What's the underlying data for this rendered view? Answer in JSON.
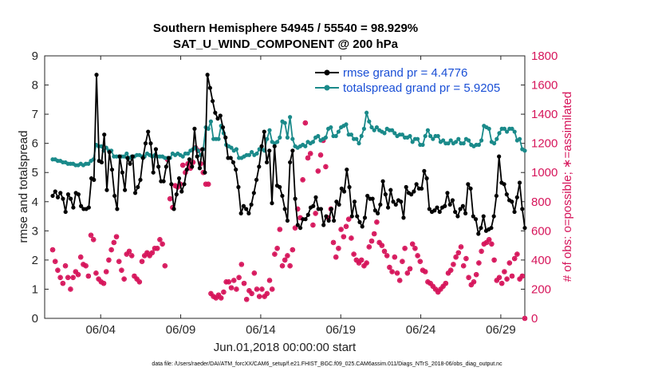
{
  "chart_data": {
    "type": "line",
    "title": "Southern Hemisphere 54945 / 55540 = 98.929%",
    "subtitle": "SAT_U_WIND_COMPONENT @ 200 hPa",
    "xlabel": "Jun.01,2018 00:00:00 start",
    "ylabel_left": "rmse and totalspread",
    "ylabel_right": "# of obs: o=possible; ∗=assimilated",
    "ylim_left": [
      0,
      9
    ],
    "ylim_right": [
      0,
      1800
    ],
    "yticks_left": [
      "0",
      "1",
      "2",
      "3",
      "4",
      "5",
      "6",
      "7",
      "8",
      "9"
    ],
    "yticks_right": [
      "0",
      "200",
      "400",
      "600",
      "800",
      "1000",
      "1200",
      "1400",
      "1600",
      "1800"
    ],
    "xlim_days": [
      0.5,
      30.5
    ],
    "xticks": [
      {
        "day": 4,
        "label": "06/04"
      },
      {
        "day": 9,
        "label": "06/09"
      },
      {
        "day": 14,
        "label": "06/14"
      },
      {
        "day": 19,
        "label": "06/19"
      },
      {
        "day": 24,
        "label": "06/24"
      },
      {
        "day": 29,
        "label": "06/29"
      }
    ],
    "legend_position": "top-right",
    "colors": {
      "rmse": "#000000",
      "spread": "#1a8a8a",
      "obs": "#d6145a",
      "legend_text": "#1a4fd6",
      "right_axis": "#d6145a"
    },
    "series": [
      {
        "name": "rmse grand pr = 4.4776",
        "axis": "left",
        "color": "#000000",
        "values": [
          4.2,
          4.35,
          4.15,
          4.3,
          4.1,
          3.65,
          4.25,
          4.1,
          3.8,
          4.3,
          4.25,
          3.85,
          3.75,
          3.75,
          3.8,
          4.8,
          4.75,
          8.35,
          5.4,
          5.35,
          6.3,
          4.4,
          5.7,
          5.1,
          4.2,
          3.75,
          5.55,
          5.0,
          4.4,
          5.5,
          5.3,
          5.55,
          4.3,
          4.5,
          4.75,
          5.5,
          6.0,
          6.4,
          6.0,
          5.0,
          5.8,
          5.2,
          4.7,
          4.7,
          5.2,
          5.5,
          4.6,
          3.75,
          4.25,
          4.8,
          4.35,
          4.6,
          5.1,
          5.45,
          5.2,
          6.5,
          5.55,
          5.15,
          5.8,
          5.0,
          8.35,
          7.9,
          7.45,
          7.05,
          6.85,
          6.95,
          6.55,
          6.2,
          5.5,
          5.5,
          5.35,
          5.1,
          4.5,
          3.6,
          3.85,
          3.75,
          3.6,
          3.9,
          4.3,
          4.75,
          5.2,
          5.9,
          6.4,
          5.35,
          5.75,
          3.95,
          5.9,
          4.55,
          4.5,
          4.2,
          3.75,
          3.35,
          5.35,
          5.75,
          4.1,
          3.2,
          3.1,
          3.4,
          3.4,
          3.55,
          3.8,
          3.85,
          4.15,
          3.75,
          3.75,
          3.2,
          3.5,
          3.35,
          3.75,
          3.35,
          4.0,
          3.9,
          4.45,
          4.35,
          5.1,
          4.5,
          3.5,
          4.0,
          3.5,
          3.3,
          3.15,
          3.45,
          4.2,
          4.1,
          4.1,
          3.7,
          3.6,
          3.9,
          4.7,
          4.25,
          3.8,
          4.4,
          4.0,
          3.9,
          4.05,
          4.0,
          3.45,
          4.5,
          4.3,
          4.25,
          4.35,
          4.6,
          4.45,
          4.45,
          5.05,
          4.8,
          3.75,
          3.65,
          3.7,
          3.8,
          3.65,
          3.8,
          3.85,
          4.3,
          3.9,
          4.05,
          3.65,
          3.5,
          3.75,
          3.85,
          3.6,
          4.6,
          4.45,
          3.5,
          3.4,
          2.9,
          3.1,
          3.5,
          3.0,
          3.05,
          3.1,
          3.5,
          4.2,
          5.55,
          4.65,
          4.6,
          4.25,
          4.05,
          4.0,
          3.65,
          4.15,
          4.65,
          3.75,
          3.1
        ]
      },
      {
        "name": "totalspread grand pr = 5.9205",
        "axis": "left",
        "color": "#1a8a8a",
        "values": [
          5.45,
          5.45,
          5.4,
          5.4,
          5.35,
          5.35,
          5.3,
          5.3,
          5.3,
          5.25,
          5.25,
          5.3,
          5.25,
          5.3,
          5.3,
          5.4,
          5.45,
          5.95,
          5.9,
          5.9,
          5.75,
          5.85,
          5.75,
          5.75,
          5.55,
          5.55,
          5.55,
          5.55,
          5.55,
          5.65,
          5.5,
          5.55,
          5.55,
          5.6,
          5.6,
          5.55,
          5.55,
          5.65,
          5.6,
          5.55,
          5.6,
          5.55,
          5.55,
          5.55,
          5.5,
          5.5,
          5.5,
          5.65,
          5.6,
          5.65,
          5.6,
          5.55,
          5.65,
          5.65,
          5.75,
          5.8,
          5.85,
          5.75,
          5.6,
          5.8,
          6.55,
          6.5,
          6.75,
          6.15,
          6.15,
          6.15,
          6.6,
          6.35,
          5.95,
          5.9,
          5.85,
          5.75,
          5.8,
          5.5,
          5.5,
          5.55,
          5.6,
          5.6,
          5.7,
          5.6,
          5.65,
          5.8,
          5.8,
          5.75,
          6.15,
          6.45,
          6.05,
          6.0,
          6.05,
          6.2,
          6.75,
          6.7,
          6.2,
          6.9,
          6.15,
          5.9,
          5.85,
          5.9,
          5.95,
          5.9,
          6.05,
          6.0,
          6.05,
          6.2,
          6.25,
          6.1,
          6.15,
          6.2,
          6.5,
          6.55,
          6.25,
          6.25,
          6.4,
          6.55,
          6.6,
          6.65,
          6.3,
          6.3,
          6.15,
          6.15,
          6.0,
          6.25,
          6.5,
          7.05,
          6.75,
          6.55,
          6.45,
          6.55,
          6.45,
          6.4,
          6.35,
          6.5,
          6.45,
          6.45,
          6.35,
          6.25,
          6.3,
          6.3,
          6.2,
          6.2,
          6.25,
          6.05,
          6.15,
          6.15,
          5.95,
          5.95,
          6.25,
          6.45,
          6.25,
          6.15,
          6.25,
          6.25,
          6.05,
          6.1,
          6.0,
          6.0,
          6.1,
          6.0,
          6.05,
          6.15,
          6.0,
          6.0,
          6.15,
          6.1,
          5.95,
          5.9,
          5.95,
          5.95,
          6.1,
          6.6,
          6.55,
          6.5,
          6.05,
          6.0,
          6.15,
          6.35,
          6.5,
          6.5,
          6.4,
          6.5,
          6.5,
          6.4,
          6.1,
          6.15,
          5.8,
          5.75
        ]
      },
      {
        "name": "obs possible (o)",
        "axis": "right",
        "color": "#d6145a",
        "values": [
          470,
          390,
          330,
          280,
          240,
          360,
          280,
          200,
          280,
          320,
          300,
          420,
          370,
          360,
          290,
          570,
          540,
          310,
          270,
          250,
          240,
          320,
          400,
          470,
          520,
          560,
          390,
          330,
          270,
          440,
          460,
          430,
          290,
          270,
          250,
          390,
          430,
          450,
          430,
          450,
          480,
          480,
          540,
          510,
          360,
          1090,
          820,
          760,
          910,
          900,
          920,
          1050,
          1000,
          1060,
          1030,
          1070,
          1170,
          1150,
          1060,
          1000,
          920,
          920,
          170,
          150,
          140,
          160,
          140,
          180,
          250,
          250,
          210,
          260,
          200,
          280,
          370,
          240,
          130,
          190,
          170,
          310,
          200,
          150,
          200,
          150,
          170,
          260,
          200,
          440,
          480,
          610,
          360,
          400,
          430,
          360,
          470,
          620,
          750,
          690,
          950,
          1340,
          1100,
          1130,
          640,
          720,
          1010,
          1120,
          1220,
          1040,
          690,
          750,
          520,
          420,
          480,
          610,
          560,
          630,
          680,
          550,
          440,
          400,
          380,
          400,
          360,
          380,
          490,
          530,
          580,
          660,
          520,
          500,
          460,
          430,
          350,
          320,
          420,
          310,
          260,
          390,
          480,
          310,
          340,
          510,
          480,
          430,
          390,
          330,
          320,
          250,
          240,
          220,
          200,
          180,
          200,
          220,
          240,
          310,
          330,
          370,
          420,
          450,
          490,
          360,
          410,
          280,
          230,
          250,
          300,
          380,
          460,
          510,
          520,
          540,
          510,
          400,
          260,
          280,
          240,
          320,
          270,
          380,
          290,
          410,
          440,
          270,
          290,
          0
        ]
      },
      {
        "name": "obs assimilated (∗)",
        "axis": "right",
        "color": "#d6145a",
        "values": [
          470,
          390,
          330,
          280,
          240,
          360,
          280,
          200,
          280,
          320,
          300,
          420,
          370,
          360,
          290,
          570,
          540,
          310,
          270,
          250,
          240,
          320,
          400,
          470,
          520,
          560,
          390,
          330,
          270,
          440,
          460,
          430,
          290,
          270,
          250,
          390,
          430,
          450,
          430,
          450,
          480,
          480,
          540,
          510,
          360,
          1090,
          820,
          760,
          910,
          900,
          920,
          1050,
          1000,
          1060,
          1030,
          1070,
          1170,
          1150,
          1060,
          1000,
          920,
          920,
          170,
          150,
          140,
          160,
          140,
          180,
          250,
          250,
          210,
          260,
          200,
          280,
          370,
          240,
          130,
          190,
          170,
          310,
          200,
          150,
          200,
          150,
          170,
          260,
          200,
          440,
          480,
          610,
          360,
          400,
          430,
          360,
          470,
          620,
          750,
          690,
          950,
          1340,
          1100,
          1130,
          640,
          720,
          1010,
          1120,
          1220,
          1040,
          690,
          750,
          520,
          420,
          480,
          610,
          560,
          630,
          680,
          550,
          440,
          400,
          380,
          400,
          360,
          380,
          490,
          530,
          580,
          660,
          520,
          500,
          460,
          430,
          350,
          320,
          420,
          310,
          260,
          390,
          480,
          310,
          340,
          510,
          480,
          430,
          390,
          330,
          320,
          250,
          240,
          220,
          200,
          180,
          200,
          220,
          240,
          310,
          330,
          370,
          420,
          450,
          490,
          360,
          410,
          280,
          230,
          250,
          300,
          380,
          460,
          510,
          520,
          540,
          510,
          400,
          260,
          280,
          240,
          320,
          270,
          380,
          290,
          410,
          440,
          270,
          290,
          0
        ]
      }
    ],
    "footer": "data file: /Users/raeder/DAI/ATM_forcXX/CAM6_setup/f.e21.FHIST_BGC.f09_025.CAM6assim.011/Diags_NTrS_2018-06/obs_diag_output.nc"
  }
}
